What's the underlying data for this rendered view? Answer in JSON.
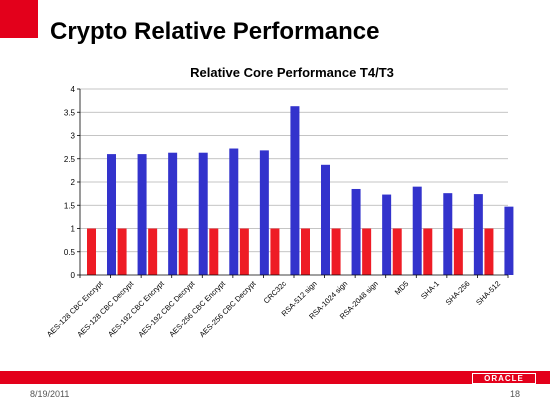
{
  "slide": {
    "title": "Crypto Relative Performance",
    "date": "8/19/2011",
    "page_number": "18",
    "logo_text": "ORACLE"
  },
  "colors": {
    "accent": "#e3001b",
    "series_t3": "#ee1c25",
    "series_t4": "#3333cc",
    "gridline": "#b0b0b0"
  },
  "chart_data": {
    "type": "bar",
    "title": "Relative Core Performance T4/T3",
    "xlabel": "",
    "ylabel": "",
    "ylim": [
      0,
      4
    ],
    "yticks": [
      "0",
      "0.5",
      "1",
      "1.5",
      "2",
      "2.5",
      "3",
      "3.5",
      "4"
    ],
    "grid": true,
    "legend": "none",
    "categories": [
      "AES-128 CBC Encrypt",
      "AES-128 CBC Decrypt",
      "AES-192 CBC Encrypt",
      "AES-192 CBC Decrypt",
      "AES-256 CBC Encrypt",
      "AES-256 CBC Decrypt",
      "CRC32c",
      "RSA-512 sign",
      "RSA-1024 sign",
      "RSA-2048 sign",
      "MD5",
      "SHA-1",
      "SHA-256",
      "SHA-512"
    ],
    "series": [
      {
        "values": [
          1,
          1,
          1,
          1,
          1,
          1,
          1,
          1,
          1,
          1,
          1,
          1,
          1,
          1
        ]
      },
      {
        "values": [
          2.6,
          2.6,
          2.63,
          2.63,
          2.72,
          2.68,
          3.63,
          2.37,
          1.85,
          1.73,
          1.9,
          1.76,
          1.74,
          1.47
        ]
      }
    ]
  }
}
